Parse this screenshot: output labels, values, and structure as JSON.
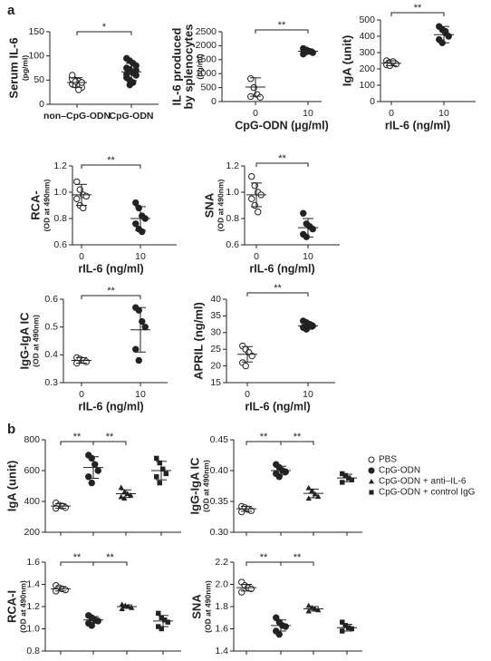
{
  "panel_labels": [
    "a",
    "b"
  ],
  "chart_data": [
    {
      "type": "dot",
      "ylabel": [
        "Serum IL-6"
      ],
      "yunit": "(pg/ml)",
      "categories": [
        "non–CpG-ODN",
        "CpG-ODN"
      ],
      "ylim": [
        0,
        150
      ],
      "yticks": [
        0,
        50,
        100,
        150
      ],
      "groups": [
        {
          "marker": "open-circle",
          "values": [
            55,
            50,
            48,
            45,
            42,
            40,
            38,
            35,
            52,
            47,
            30,
            45,
            60
          ],
          "mean": 45,
          "sd": 10
        },
        {
          "marker": "circle",
          "values": [
            95,
            90,
            85,
            80,
            75,
            72,
            65,
            60,
            55,
            50,
            45,
            70,
            62,
            40
          ],
          "mean": 67,
          "sd": 18
        }
      ],
      "annotations": [
        {
          "text": "*",
          "between": [
            0,
            1
          ]
        }
      ]
    },
    {
      "type": "dot",
      "ylabel": [
        "IL-6 produced",
        "by splenocytes"
      ],
      "yunit": "(pg/ml)",
      "categories": [
        "0",
        "10"
      ],
      "xlabel": "CpG-ODN (μg/ml)",
      "ylim": [
        0,
        2500
      ],
      "yticks": [
        0,
        500,
        1000,
        1500,
        2000,
        2500
      ],
      "groups": [
        {
          "marker": "open-circle",
          "values": [
            820,
            500,
            250,
            150,
            180
          ],
          "mean": 520,
          "sd": 330
        },
        {
          "marker": "circle",
          "values": [
            1900,
            1850,
            1800,
            1750,
            1700,
            1780
          ],
          "mean": 1800,
          "sd": 80
        }
      ],
      "annotations": [
        {
          "text": "**",
          "between": [
            0,
            1
          ]
        }
      ]
    },
    {
      "type": "dot",
      "ylabel": [
        "IgA (unit)"
      ],
      "categories": [
        "0",
        "10"
      ],
      "xlabel": "rIL-6 (ng/ml)",
      "ylim": [
        0,
        500
      ],
      "yticks": [
        0,
        100,
        200,
        300,
        400,
        500
      ],
      "groups": [
        {
          "marker": "open-circle",
          "values": [
            250,
            240,
            235,
            230,
            225,
            220,
            245
          ],
          "mean": 235,
          "sd": 15
        },
        {
          "marker": "circle",
          "values": [
            460,
            440,
            420,
            400,
            380,
            360,
            430
          ],
          "mean": 410,
          "sd": 50
        }
      ],
      "annotations": [
        {
          "text": "**",
          "between": [
            0,
            1
          ]
        }
      ]
    },
    {
      "type": "dot",
      "ylabel": [
        "RCA-"
      ],
      "yunit": "(OD at 490nm)",
      "categories": [
        "0",
        "10"
      ],
      "xlabel": "rIL-6 (ng/ml)",
      "ylim": [
        0.6,
        1.2
      ],
      "yticks": [
        0.6,
        0.8,
        {
          "value": 1,
          "label": "1.0"
        },
        1.2
      ],
      "groups": [
        {
          "marker": "open-circle",
          "values": [
            1.08,
            1.02,
            0.98,
            0.97,
            0.95,
            0.9,
            0.88
          ],
          "mean": 0.98,
          "sd": 0.08
        },
        {
          "marker": "circle",
          "values": [
            0.92,
            0.88,
            0.82,
            0.8,
            0.76,
            0.72,
            0.7
          ],
          "mean": 0.8,
          "sd": 0.09
        }
      ],
      "annotations": [
        {
          "text": "**",
          "between": [
            0,
            1
          ]
        }
      ]
    },
    {
      "type": "dot",
      "ylabel": [
        "SNA"
      ],
      "yunit": "(OD at 490nm)",
      "categories": [
        "0",
        "10"
      ],
      "xlabel": "rIL-6 (ng/ml)",
      "ylim": [
        0.6,
        1.2
      ],
      "yticks": [
        0.6,
        0.8,
        {
          "value": 1,
          "label": "1.0"
        },
        1.2
      ],
      "groups": [
        {
          "marker": "open-circle",
          "values": [
            1.12,
            1.05,
            1.0,
            0.98,
            0.95,
            0.9,
            0.85
          ],
          "mean": 0.98,
          "sd": 0.09
        },
        {
          "marker": "circle",
          "values": [
            0.84,
            0.76,
            0.74,
            0.72,
            0.68,
            0.66
          ],
          "mean": 0.73,
          "sd": 0.07
        }
      ],
      "annotations": [
        {
          "text": "**",
          "between": [
            0,
            1
          ]
        }
      ]
    },
    {
      "type": "dot",
      "ylabel": [
        "IgG-IgA IC"
      ],
      "yunit": "(OD at 490nm)",
      "categories": [
        "0",
        "10"
      ],
      "xlabel": "rIL-6 (ng/ml)",
      "ylim": [
        0.3,
        0.6
      ],
      "yticks": [
        0.3,
        0.4,
        0.5,
        0.6
      ],
      "groups": [
        {
          "marker": "open-circle",
          "values": [
            0.39,
            0.385,
            0.38,
            0.375,
            0.37
          ],
          "mean": 0.38,
          "sd": 0.01
        },
        {
          "marker": "circle",
          "values": [
            0.57,
            0.56,
            0.52,
            0.5,
            0.42,
            0.38
          ],
          "mean": 0.49,
          "sd": 0.08
        }
      ],
      "annotations": [
        {
          "text": "**",
          "between": [
            0,
            1
          ]
        }
      ]
    },
    {
      "type": "dot",
      "ylabel": [
        "APRIL (ng/ml)"
      ],
      "categories": [
        "0",
        "10"
      ],
      "xlabel": "rIL-6 (ng/ml)",
      "ylim": [
        15,
        40
      ],
      "yticks": [
        15,
        20,
        25,
        30,
        35,
        40
      ],
      "groups": [
        {
          "marker": "open-circle",
          "values": [
            26,
            25,
            24,
            23,
            21,
            20
          ],
          "mean": 23.5,
          "sd": 2.3
        },
        {
          "marker": "circle",
          "values": [
            33.5,
            33,
            32.5,
            32,
            31.5,
            31,
            32
          ],
          "mean": 32,
          "sd": 1
        }
      ],
      "annotations": [
        {
          "text": "**",
          "between": [
            0,
            1
          ]
        }
      ]
    },
    {
      "type": "dot",
      "ylabel": [
        "IgA (unit)"
      ],
      "ylim": [
        200,
        800
      ],
      "yticks": [
        200,
        400,
        600,
        800
      ],
      "groups": [
        {
          "marker": "open-circle",
          "values": [
            390,
            375,
            370,
            360,
            355
          ],
          "mean": 370,
          "sd": 15
        },
        {
          "marker": "circle",
          "values": [
            700,
            680,
            640,
            600,
            560,
            520
          ],
          "mean": 620,
          "sd": 70
        },
        {
          "marker": "triangle",
          "values": [
            490,
            460,
            450,
            440,
            430,
            420
          ],
          "mean": 450,
          "sd": 25
        },
        {
          "marker": "square",
          "values": [
            680,
            650,
            610,
            580,
            560,
            520
          ],
          "mean": 600,
          "sd": 60
        }
      ],
      "annotations": [
        {
          "text": "**",
          "between": [
            0,
            1
          ]
        },
        {
          "text": "**",
          "between": [
            1,
            2
          ]
        }
      ]
    },
    {
      "type": "dot",
      "ylabel": [
        "IgG-IgA IC"
      ],
      "yunit": "(OD at 490nm)",
      "ylim": [
        0.3,
        0.45
      ],
      "yticks": [
        {
          "value": 0.3,
          "label": "0.30"
        },
        0.35,
        {
          "value": 0.4,
          "label": "0.40"
        },
        0.45
      ],
      "legend": "right",
      "groups": [
        {
          "name": "PBS",
          "marker": "open-circle",
          "values": [
            0.342,
            0.34,
            0.337,
            0.335,
            0.333
          ],
          "mean": 0.338,
          "sd": 0.004
        },
        {
          "name": "CpG-ODN",
          "marker": "circle",
          "values": [
            0.41,
            0.405,
            0.4,
            0.398,
            0.395,
            0.39
          ],
          "mean": 0.4,
          "sd": 0.007
        },
        {
          "name": "CpG-ODN + anti–IL-6",
          "marker": "triangle",
          "values": [
            0.372,
            0.367,
            0.362,
            0.358,
            0.355
          ],
          "mean": 0.363,
          "sd": 0.007
        },
        {
          "name": "CpG-ODN + control IgG",
          "marker": "square",
          "values": [
            0.395,
            0.392,
            0.388,
            0.385,
            0.381
          ],
          "mean": 0.388,
          "sd": 0.006
        }
      ],
      "annotations": [
        {
          "text": "**",
          "between": [
            0,
            1
          ]
        },
        {
          "text": "**",
          "between": [
            1,
            2
          ]
        }
      ]
    },
    {
      "type": "dot",
      "ylabel": [
        "RCA-I"
      ],
      "yunit": "(OD at 490nm)",
      "ylim": [
        0.8,
        1.6
      ],
      "yticks": [
        0.8,
        {
          "value": 1,
          "label": "1.0"
        },
        1.2,
        1.4,
        1.6
      ],
      "groups": [
        {
          "marker": "open-circle",
          "values": [
            1.39,
            1.37,
            1.36,
            1.35,
            1.34
          ],
          "mean": 1.36,
          "sd": 0.02
        },
        {
          "marker": "circle",
          "values": [
            1.12,
            1.1,
            1.08,
            1.07,
            1.05,
            1.03
          ],
          "mean": 1.08,
          "sd": 0.03
        },
        {
          "marker": "triangle",
          "values": [
            1.22,
            1.21,
            1.2,
            1.19,
            1.18
          ],
          "mean": 1.2,
          "sd": 0.015
        },
        {
          "marker": "square",
          "values": [
            1.14,
            1.1,
            1.08,
            1.06,
            1.02,
            1.0
          ],
          "mean": 1.07,
          "sd": 0.05
        }
      ],
      "annotations": [
        {
          "text": "**",
          "between": [
            0,
            1
          ]
        },
        {
          "text": "**",
          "between": [
            1,
            2
          ]
        }
      ]
    },
    {
      "type": "dot",
      "ylabel": [
        "SNA"
      ],
      "yunit": "(OD at 490nm)",
      "ylim": [
        1.4,
        2.2
      ],
      "yticks": [
        1.4,
        1.6,
        1.8,
        {
          "value": 2,
          "label": "2.0"
        },
        2.2
      ],
      "groups": [
        {
          "marker": "open-circle",
          "values": [
            2.02,
            1.99,
            1.97,
            1.96,
            1.93
          ],
          "mean": 1.97,
          "sd": 0.03
        },
        {
          "marker": "circle",
          "values": [
            1.7,
            1.66,
            1.63,
            1.62,
            1.58,
            1.55
          ],
          "mean": 1.63,
          "sd": 0.05
        },
        {
          "marker": "triangle",
          "values": [
            1.81,
            1.79,
            1.78,
            1.77,
            1.76
          ],
          "mean": 1.78,
          "sd": 0.02
        },
        {
          "marker": "square",
          "values": [
            1.66,
            1.63,
            1.61,
            1.6,
            1.58
          ],
          "mean": 1.61,
          "sd": 0.03
        }
      ],
      "annotations": [
        {
          "text": "**",
          "between": [
            0,
            1
          ]
        },
        {
          "text": "**",
          "between": [
            1,
            2
          ]
        }
      ]
    }
  ]
}
